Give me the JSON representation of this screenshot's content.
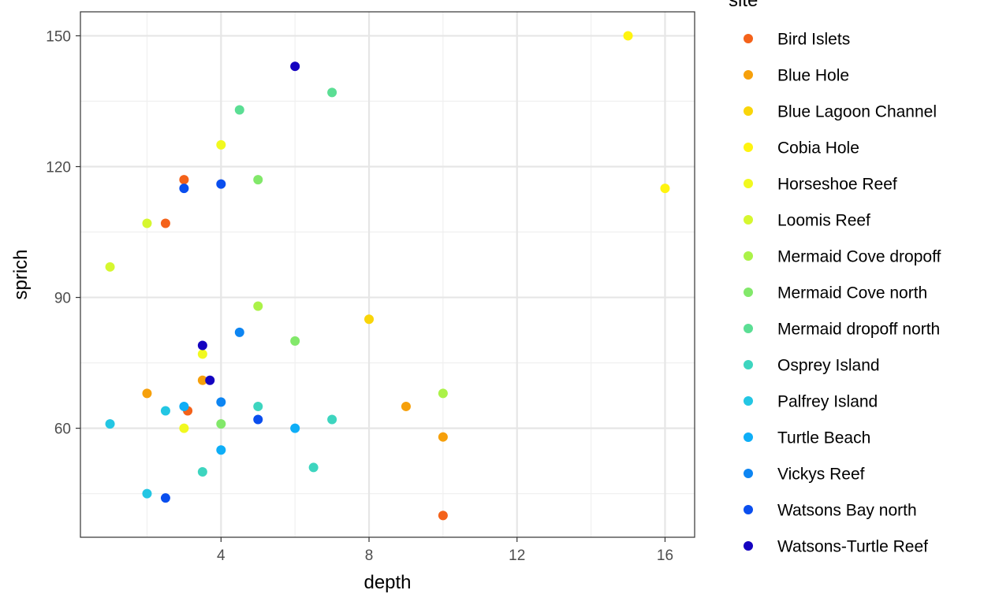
{
  "chart_data": {
    "type": "scatter",
    "xlabel": "depth",
    "ylabel": "sprich",
    "xlim": [
      0.2,
      16.8
    ],
    "ylim": [
      35,
      155.5
    ],
    "x_ticks": [
      4,
      8,
      12,
      16
    ],
    "y_ticks": [
      60,
      90,
      120,
      150
    ],
    "grid": true,
    "legend_title": "site",
    "legend_position": "right",
    "series": [
      {
        "name": "Bird Islets",
        "color": "#F4621A",
        "points": [
          [
            2.5,
            107
          ],
          [
            3,
            117
          ],
          [
            3.1,
            64
          ],
          [
            10,
            40
          ]
        ]
      },
      {
        "name": "Blue Hole",
        "color": "#F6A00B",
        "points": [
          [
            2,
            68
          ],
          [
            3.5,
            71
          ],
          [
            9,
            65
          ],
          [
            10,
            58
          ]
        ]
      },
      {
        "name": "Blue Lagoon Channel",
        "color": "#F9D509",
        "points": [
          [
            8,
            85
          ]
        ]
      },
      {
        "name": "Cobia Hole",
        "color": "#FFF40F",
        "points": [
          [
            15,
            150
          ],
          [
            16,
            115
          ]
        ]
      },
      {
        "name": "Horseshoe Reef",
        "color": "#F1F91F",
        "points": [
          [
            4,
            125
          ],
          [
            3,
            60
          ],
          [
            3.5,
            77
          ]
        ]
      },
      {
        "name": "Loomis Reef",
        "color": "#D6F72F",
        "points": [
          [
            1,
            97
          ],
          [
            2,
            107
          ]
        ]
      },
      {
        "name": "Mermaid Cove dropoff",
        "color": "#ABF248",
        "points": [
          [
            5,
            88
          ],
          [
            10,
            68
          ]
        ]
      },
      {
        "name": "Mermaid Cove north",
        "color": "#82E86A",
        "points": [
          [
            5,
            117
          ],
          [
            6,
            80
          ],
          [
            4,
            61
          ]
        ]
      },
      {
        "name": "Mermaid dropoff north",
        "color": "#5BDE94",
        "points": [
          [
            4.5,
            133
          ],
          [
            7,
            137
          ]
        ]
      },
      {
        "name": "Osprey Island",
        "color": "#3DD5BF",
        "points": [
          [
            3.5,
            50
          ],
          [
            5,
            65
          ],
          [
            6.5,
            51
          ],
          [
            7,
            62
          ]
        ]
      },
      {
        "name": "Palfrey Island",
        "color": "#23C6E3",
        "points": [
          [
            1,
            61
          ],
          [
            2,
            45
          ],
          [
            2.5,
            64
          ]
        ]
      },
      {
        "name": "Turtle Beach",
        "color": "#0EAEF7",
        "points": [
          [
            3,
            65
          ],
          [
            4,
            55
          ],
          [
            6,
            60
          ]
        ]
      },
      {
        "name": "Vickys Reef",
        "color": "#0D85F2",
        "points": [
          [
            4.5,
            82
          ],
          [
            4,
            66
          ]
        ]
      },
      {
        "name": "Watsons Bay north",
        "color": "#0A4EEE",
        "points": [
          [
            3,
            115
          ],
          [
            4,
            116
          ],
          [
            2.5,
            44
          ],
          [
            5,
            62
          ]
        ]
      },
      {
        "name": "Watsons-Turtle Reef",
        "color": "#1402C0",
        "points": [
          [
            6,
            143
          ],
          [
            3.5,
            79
          ],
          [
            3.7,
            71
          ]
        ]
      }
    ]
  }
}
